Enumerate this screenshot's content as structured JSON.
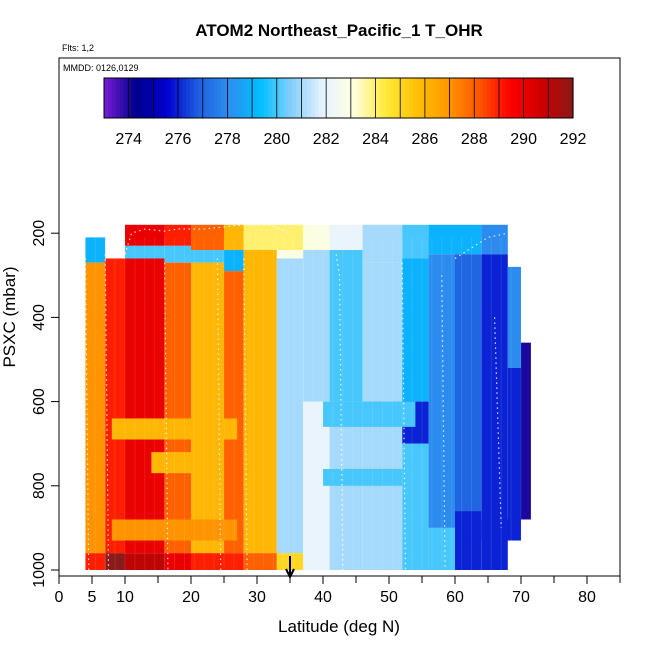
{
  "chart_data": {
    "type": "heatmap",
    "title": "ATOM2 Northeast_Pacific_1 T_OHR",
    "flights_label": "Flts: 1,2",
    "dates_label": "MMDD: 0126,0129",
    "xlabel": "Latitude (deg N)",
    "ylabel": "PSXC (mbar)",
    "x_ticks": [
      0,
      5,
      10,
      20,
      30,
      40,
      50,
      60,
      70,
      80
    ],
    "x_minor_ticks": [
      15,
      25,
      35,
      45,
      55,
      65,
      75,
      85
    ],
    "y_ticks": [
      200,
      400,
      600,
      800,
      1000
    ],
    "xlim": [
      0,
      85
    ],
    "ylim": [
      1000,
      50
    ],
    "colorbar": {
      "ticks": [
        274,
        276,
        278,
        280,
        282,
        284,
        286,
        288,
        290,
        292
      ],
      "range": [
        273,
        292
      ],
      "colors": [
        "#7a1fd6",
        "#00008b",
        "#0000cd",
        "#1e5ee0",
        "#2d8ef0",
        "#00bfff",
        "#87cefa",
        "#e6f3ff",
        "#ffffe0",
        "#ffeb3b",
        "#ffc107",
        "#ff9800",
        "#ff5500",
        "#ff0000",
        "#cc0000",
        "#8b1a1a"
      ]
    },
    "marker": {
      "latitude": 35,
      "label": "arrow"
    },
    "columns": [
      {
        "x": [
          4,
          7
        ],
        "rows": [
          [
            210,
            270,
            279
          ],
          [
            270,
            960,
            287
          ],
          [
            960,
            1000,
            289
          ]
        ]
      },
      {
        "x": [
          7,
          10
        ],
        "rows": [
          [
            260,
            960,
            289
          ],
          [
            960,
            1000,
            292
          ]
        ]
      },
      {
        "x": [
          10,
          16
        ],
        "rows": [
          [
            180,
            230,
            290
          ],
          [
            230,
            260,
            280
          ],
          [
            260,
            960,
            290
          ],
          [
            960,
            1000,
            291
          ]
        ]
      },
      {
        "x": [
          16,
          20
        ],
        "rows": [
          [
            180,
            230,
            289
          ],
          [
            230,
            270,
            280
          ],
          [
            270,
            960,
            288
          ],
          [
            960,
            1000,
            290
          ]
        ]
      },
      {
        "x": [
          20,
          25
        ],
        "rows": [
          [
            180,
            240,
            288
          ],
          [
            240,
            270,
            280
          ],
          [
            270,
            960,
            286
          ],
          [
            960,
            1000,
            289
          ]
        ]
      },
      {
        "x": [
          25,
          28
        ],
        "rows": [
          [
            180,
            240,
            286
          ],
          [
            240,
            290,
            279
          ],
          [
            290,
            960,
            288
          ],
          [
            960,
            1000,
            289
          ]
        ]
      },
      {
        "x": [
          28,
          33
        ],
        "rows": [
          [
            180,
            240,
            284
          ],
          [
            240,
            960,
            286
          ],
          [
            960,
            1000,
            288
          ]
        ]
      },
      {
        "x": [
          33,
          37
        ],
        "rows": [
          [
            180,
            240,
            284
          ],
          [
            240,
            260,
            283
          ],
          [
            260,
            960,
            281
          ],
          [
            960,
            1000,
            285
          ]
        ]
      },
      {
        "x": [
          37,
          41
        ],
        "rows": [
          [
            180,
            240,
            283
          ],
          [
            240,
            600,
            281
          ],
          [
            600,
            1000,
            282
          ]
        ]
      },
      {
        "x": [
          41,
          46
        ],
        "rows": [
          [
            180,
            240,
            282
          ],
          [
            240,
            600,
            280
          ],
          [
            600,
            1000,
            281
          ]
        ]
      },
      {
        "x": [
          46,
          52
        ],
        "rows": [
          [
            180,
            270,
            281
          ],
          [
            270,
            1000,
            281
          ]
        ]
      },
      {
        "x": [
          52,
          56
        ],
        "rows": [
          [
            180,
            260,
            280
          ],
          [
            260,
            600,
            279
          ],
          [
            600,
            700,
            276
          ],
          [
            700,
            1000,
            280
          ]
        ]
      },
      {
        "x": [
          56,
          60
        ],
        "rows": [
          [
            180,
            250,
            279
          ],
          [
            250,
            900,
            278
          ],
          [
            900,
            1000,
            280
          ]
        ]
      },
      {
        "x": [
          60,
          64
        ],
        "rows": [
          [
            180,
            250,
            279
          ],
          [
            250,
            860,
            277
          ],
          [
            860,
            1000,
            276
          ]
        ]
      },
      {
        "x": [
          64,
          68
        ],
        "rows": [
          [
            180,
            250,
            278
          ],
          [
            250,
            900,
            276
          ],
          [
            900,
            1000,
            276
          ]
        ]
      },
      {
        "x": [
          68,
          70
        ],
        "rows": [
          [
            280,
            520,
            278
          ],
          [
            520,
            900,
            276
          ]
        ]
      },
      {
        "x": [
          70,
          71.5
        ],
        "rows": [
          [
            460,
            880,
            274
          ]
        ]
      }
    ],
    "bands": [
      {
        "x": [
          8,
          27
        ],
        "rows": [
          [
            640,
            690,
            286
          ],
          [
            880,
            930,
            287
          ]
        ]
      },
      {
        "x": [
          14,
          21
        ],
        "rows": [
          [
            720,
            770,
            286
          ]
        ]
      },
      {
        "x": [
          40,
          54
        ],
        "rows": [
          [
            600,
            660,
            280
          ],
          [
            760,
            800,
            280
          ]
        ]
      },
      {
        "x": [
          60,
          70
        ],
        "rows": [
          [
            880,
            930,
            276
          ]
        ]
      }
    ]
  }
}
